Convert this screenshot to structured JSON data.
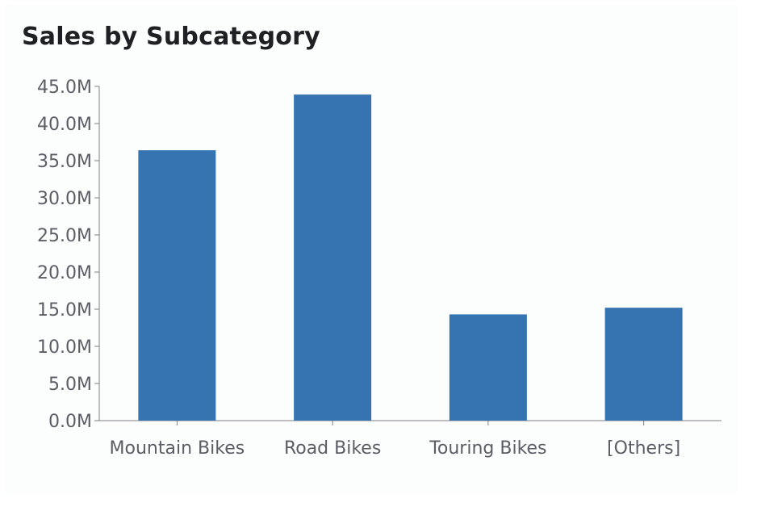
{
  "chart_data": {
    "type": "bar",
    "title": "Sales by Subcategory",
    "xlabel": "",
    "ylabel": "",
    "categories": [
      "Mountain Bikes",
      "Road Bikes",
      "Touring Bikes",
      "[Others]"
    ],
    "values": [
      36.4,
      43.9,
      14.3,
      15.2
    ],
    "ylim": [
      0,
      45
    ],
    "yticks": [
      0,
      5,
      10,
      15,
      20,
      25,
      30,
      35,
      40,
      45
    ],
    "ytick_labels": [
      "0.0M",
      "5.0M",
      "10.0M",
      "15.0M",
      "20.0M",
      "25.0M",
      "30.0M",
      "35.0M",
      "40.0M",
      "45.0M"
    ],
    "bar_color": "#3574b1",
    "axis_color": "#7f7f85",
    "grid": false,
    "legend": "none"
  }
}
